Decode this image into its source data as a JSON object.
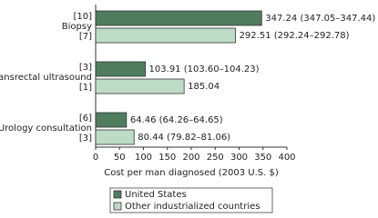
{
  "chart_data": {
    "type": "hbar",
    "categories": [
      "Biopsy",
      "Transrectal ultrasound",
      "Urology consultation"
    ],
    "series": [
      {
        "name": "United States",
        "color": "#4f7d5e",
        "values": [
          347.24,
          103.91,
          64.46
        ],
        "value_labels": [
          "347.24 (347.05–347.44)",
          "103.91 (103.60–104.23)",
          "64.46 (64.26–64.65)"
        ],
        "refs": [
          "[10]",
          "[3]",
          "[6]"
        ]
      },
      {
        "name": "Other industrialized countries",
        "color": "#bddcc5",
        "values": [
          292.51,
          185.04,
          80.44
        ],
        "value_labels": [
          "292.51 (292.24–292.78)",
          "185.04",
          "80.44 (79.82–81.06)"
        ],
        "refs": [
          "[7]",
          "[1]",
          "[3]"
        ]
      }
    ],
    "xlabel": "Cost per man diagnosed (2003 U.S. $)",
    "xlim": [
      0,
      400
    ],
    "xticks": [
      0,
      50,
      100,
      150,
      200,
      250,
      300,
      350,
      400
    ],
    "legend": "bottom"
  }
}
